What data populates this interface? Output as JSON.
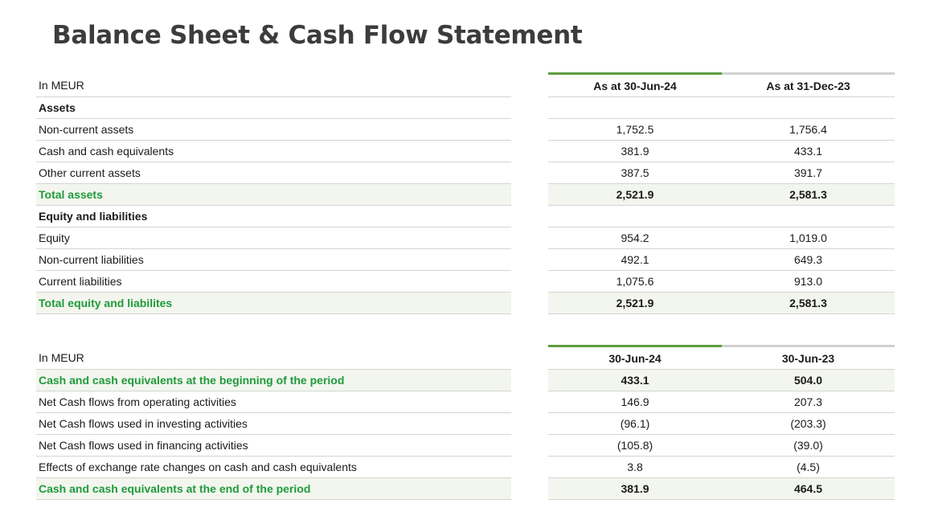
{
  "title": "Balance Sheet & Cash Flow Statement",
  "colors": {
    "accent_green": "#5e9e3e",
    "total_text": "#1f9a3c",
    "total_bg": "#f3f6ee"
  },
  "balance_sheet": {
    "header": {
      "unit": "In MEUR",
      "col1": "As at 30-Jun-24",
      "col2": "As at 31-Dec-23"
    },
    "rows": [
      {
        "label": "Assets",
        "v1": "",
        "v2": "",
        "kind": "section"
      },
      {
        "label": "Non-current assets",
        "v1": "1,752.5",
        "v2": "1,756.4",
        "kind": "row"
      },
      {
        "label": "Cash and cash equivalents",
        "v1": "381.9",
        "v2": "433.1",
        "kind": "row"
      },
      {
        "label": "Other current assets",
        "v1": "387.5",
        "v2": "391.7",
        "kind": "row"
      },
      {
        "label": "Total assets",
        "v1": "2,521.9",
        "v2": "2,581.3",
        "kind": "total"
      },
      {
        "label": "Equity and liabilities",
        "v1": "",
        "v2": "",
        "kind": "section"
      },
      {
        "label": "Equity",
        "v1": "954.2",
        "v2": "1,019.0",
        "kind": "row"
      },
      {
        "label": "Non-current liabilities",
        "v1": "492.1",
        "v2": "649.3",
        "kind": "row"
      },
      {
        "label": "Current liabilities",
        "v1": "1,075.6",
        "v2": "913.0",
        "kind": "row"
      },
      {
        "label": "Total equity and liabilites",
        "v1": "2,521.9",
        "v2": "2,581.3",
        "kind": "total"
      }
    ]
  },
  "cash_flow": {
    "header": {
      "unit": "In MEUR",
      "col1": "30-Jun-24",
      "col2": "30-Jun-23"
    },
    "rows": [
      {
        "label": "Cash and cash equivalents at the beginning of the period",
        "v1": "433.1",
        "v2": "504.0",
        "kind": "total"
      },
      {
        "label": "Net Cash flows from operating activities",
        "v1": "146.9",
        "v2": "207.3",
        "kind": "row"
      },
      {
        "label": "Net Cash flows used in investing activities",
        "v1": "(96.1)",
        "v2": "(203.3)",
        "kind": "row"
      },
      {
        "label": "Net Cash flows used in financing activities",
        "v1": "(105.8)",
        "v2": "(39.0)",
        "kind": "row"
      },
      {
        "label": "Effects of exchange rate changes on cash and cash equivalents",
        "v1": "3.8",
        "v2": "(4.5)",
        "kind": "row"
      },
      {
        "label": "Cash and cash equivalents at the end of the period",
        "v1": "381.9",
        "v2": "464.5",
        "kind": "total"
      }
    ]
  }
}
